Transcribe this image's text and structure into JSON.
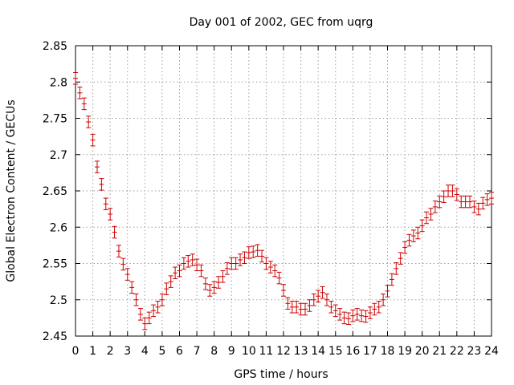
{
  "chart_data": {
    "type": "scatter",
    "title": "Day 001 of 2002, GEC from uqrg",
    "xlabel": "GPS time / hours",
    "ylabel": "Global Electron Content / GECUs",
    "xlim": [
      0,
      24
    ],
    "ylim": [
      2.45,
      2.85
    ],
    "xticks": [
      0,
      1,
      2,
      3,
      4,
      5,
      6,
      7,
      8,
      9,
      10,
      11,
      12,
      13,
      14,
      15,
      16,
      17,
      18,
      19,
      20,
      21,
      22,
      23,
      24
    ],
    "yticks": [
      2.45,
      2.5,
      2.55,
      2.6,
      2.65,
      2.7,
      2.75,
      2.8,
      2.85
    ],
    "ytick_labels": [
      "2.45",
      "2.5",
      "2.55",
      "2.6",
      "2.65",
      "2.7",
      "2.75",
      "2.8",
      "2.85"
    ],
    "grid": true,
    "marker": "errorbar",
    "color": "#cc0000",
    "error": 0.008,
    "series": [
      {
        "x": [
          0,
          0.25,
          0.5,
          0.75,
          1,
          1.25,
          1.5,
          1.75,
          2,
          2.25,
          2.5,
          2.75,
          3,
          3.25,
          3.5,
          3.75,
          4,
          4.25,
          4.5,
          4.75,
          5,
          5.25,
          5.5,
          5.75,
          6,
          6.25,
          6.5,
          6.75,
          7,
          7.25,
          7.5,
          7.75,
          8,
          8.25,
          8.5,
          8.75,
          9,
          9.25,
          9.5,
          9.75,
          10,
          10.25,
          10.5,
          10.75,
          11,
          11.25,
          11.5,
          11.75,
          12,
          12.25,
          12.5,
          12.75,
          13,
          13.25,
          13.5,
          13.75,
          14,
          14.25,
          14.5,
          14.75,
          15,
          15.25,
          15.5,
          15.75,
          16,
          16.25,
          16.5,
          16.75,
          17,
          17.25,
          17.5,
          17.75,
          18,
          18.25,
          18.5,
          18.75,
          19,
          19.25,
          19.5,
          19.75,
          20,
          20.25,
          20.5,
          20.75,
          21,
          21.25,
          21.5,
          21.75,
          22,
          22.25,
          22.5,
          22.75,
          23,
          23.25,
          23.5,
          23.75,
          24
        ],
        "values": [
          2.805,
          2.785,
          2.77,
          2.745,
          2.72,
          2.683,
          2.659,
          2.632,
          2.618,
          2.593,
          2.567,
          2.549,
          2.535,
          2.517,
          2.5,
          2.48,
          2.467,
          2.475,
          2.485,
          2.49,
          2.5,
          2.515,
          2.525,
          2.537,
          2.54,
          2.55,
          2.553,
          2.555,
          2.548,
          2.54,
          2.522,
          2.513,
          2.517,
          2.524,
          2.532,
          2.543,
          2.55,
          2.55,
          2.555,
          2.558,
          2.565,
          2.566,
          2.568,
          2.56,
          2.55,
          2.545,
          2.54,
          2.53,
          2.513,
          2.495,
          2.49,
          2.49,
          2.487,
          2.487,
          2.492,
          2.5,
          2.505,
          2.51,
          2.5,
          2.49,
          2.485,
          2.48,
          2.475,
          2.474,
          2.478,
          2.48,
          2.478,
          2.477,
          2.482,
          2.487,
          2.49,
          2.5,
          2.512,
          2.528,
          2.543,
          2.557,
          2.572,
          2.582,
          2.588,
          2.592,
          2.602,
          2.613,
          2.618,
          2.628,
          2.635,
          2.642,
          2.65,
          2.65,
          2.645,
          2.635,
          2.635,
          2.635,
          2.628,
          2.625,
          2.633,
          2.638,
          2.64
        ]
      }
    ]
  }
}
